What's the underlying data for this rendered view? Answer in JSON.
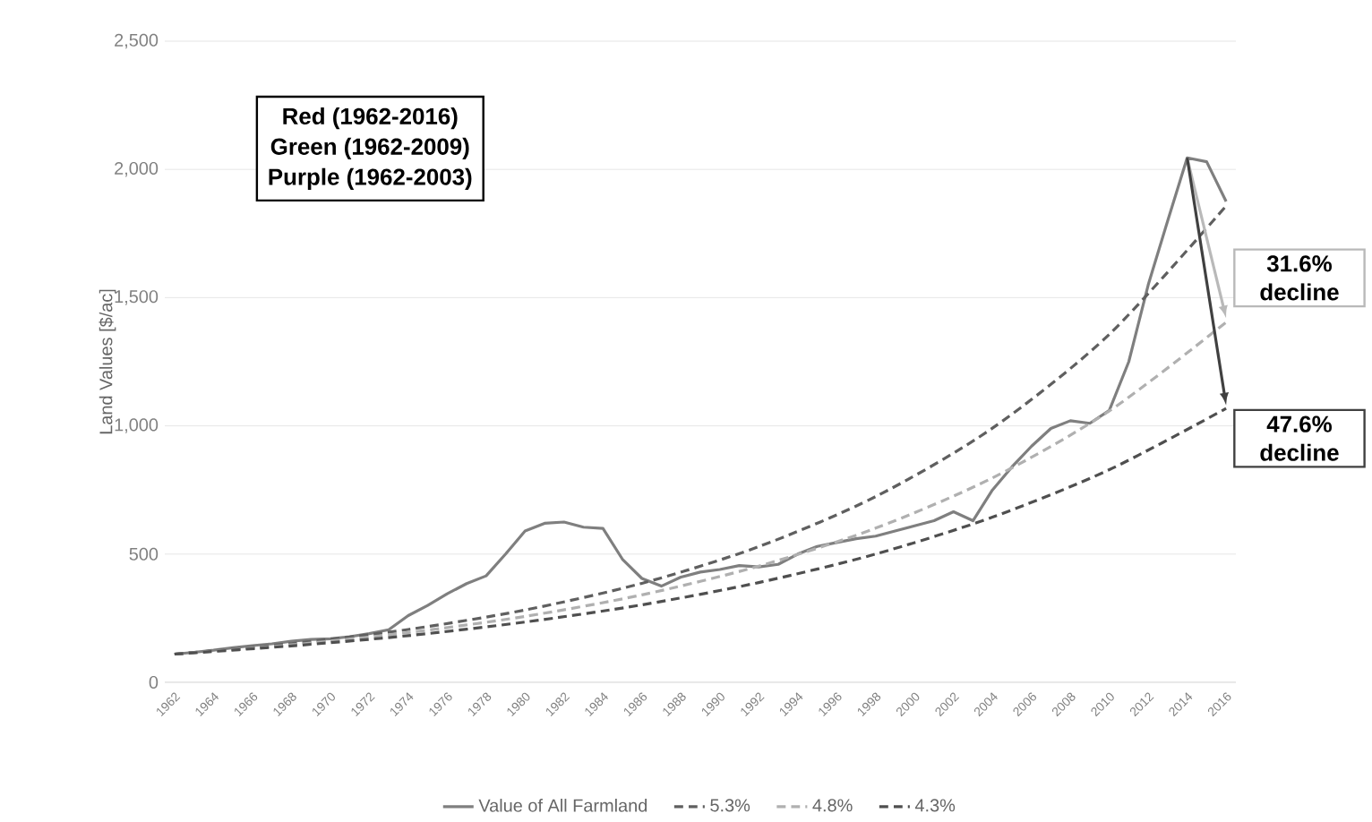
{
  "chart_data": {
    "type": "line",
    "ylabel": "Land Values [$/ac]",
    "xlim": [
      1961.5,
      2016.5
    ],
    "xticks": [
      {
        "value": 1962,
        "label": "1962"
      },
      {
        "value": 1964,
        "label": "1964"
      },
      {
        "value": 1966,
        "label": "1966"
      },
      {
        "value": 1968,
        "label": "1968"
      },
      {
        "value": 1970,
        "label": "1970"
      },
      {
        "value": 1972,
        "label": "1972"
      },
      {
        "value": 1974,
        "label": "1974"
      },
      {
        "value": 1976,
        "label": "1976"
      },
      {
        "value": 1978,
        "label": "1978"
      },
      {
        "value": 1980,
        "label": "1980"
      },
      {
        "value": 1982,
        "label": "1982"
      },
      {
        "value": 1984,
        "label": "1984"
      },
      {
        "value": 1986,
        "label": "1986"
      },
      {
        "value": 1988,
        "label": "1988"
      },
      {
        "value": 1990,
        "label": "1990"
      },
      {
        "value": 1992,
        "label": "1992"
      },
      {
        "value": 1994,
        "label": "1994"
      },
      {
        "value": 1996,
        "label": "1996"
      },
      {
        "value": 1998,
        "label": "1998"
      },
      {
        "value": 2000,
        "label": "2000"
      },
      {
        "value": 2002,
        "label": "2002"
      },
      {
        "value": 2004,
        "label": "2004"
      },
      {
        "value": 2006,
        "label": "2006"
      },
      {
        "value": 2008,
        "label": "2008"
      },
      {
        "value": 2010,
        "label": "2010"
      },
      {
        "value": 2012,
        "label": "2012"
      },
      {
        "value": 2014,
        "label": "2014"
      },
      {
        "value": 2016,
        "label": "2016"
      }
    ],
    "ylim": [
      0,
      2500
    ],
    "yticks": [
      0,
      500,
      {
        "value": 1000,
        "label": "1,000"
      },
      {
        "value": 1500,
        "label": "1,500"
      },
      {
        "value": 2000,
        "label": "2,000"
      },
      {
        "value": 2500,
        "label": "2,500"
      }
    ],
    "grid": "y",
    "legend": "bottom",
    "marker": "none",
    "series": [
      {
        "name": "Value of All Farmland",
        "color": "#7f7f7f",
        "line_style": "solid",
        "x": [
          1962,
          1963,
          1964,
          1965,
          1966,
          1967,
          1968,
          1969,
          1970,
          1971,
          1972,
          1973,
          1974,
          1975,
          1976,
          1977,
          1978,
          1979,
          1980,
          1981,
          1982,
          1983,
          1984,
          1985,
          1986,
          1987,
          1988,
          1989,
          1990,
          1991,
          1992,
          1993,
          1994,
          1995,
          1996,
          1997,
          1998,
          1999,
          2000,
          2001,
          2002,
          2003,
          2004,
          2005,
          2006,
          2007,
          2008,
          2009,
          2010,
          2011,
          2012,
          2013,
          2014,
          2015,
          2016
        ],
        "values": [
          110,
          117,
          125,
          135,
          143,
          150,
          160,
          167,
          170,
          178,
          190,
          205,
          260,
          300,
          345,
          385,
          415,
          500,
          590,
          620,
          625,
          605,
          600,
          480,
          405,
          375,
          410,
          430,
          440,
          455,
          450,
          460,
          500,
          530,
          545,
          560,
          570,
          590,
          610,
          630,
          665,
          630,
          750,
          840,
          920,
          990,
          1020,
          1010,
          1060,
          1250,
          1550,
          1800,
          2045,
          2030,
          1875
        ]
      },
      {
        "name": "5.3%",
        "color": "#5f5f5f",
        "line_style": "dashed",
        "x": [
          1962,
          1968,
          1974,
          1980,
          1986,
          1992,
          1998,
          2004,
          2010,
          2016
        ],
        "values": [
          110,
          151,
          206,
          282,
          386,
          529,
          724,
          991,
          1357,
          1858
        ]
      },
      {
        "name": "4.8%",
        "color": "#b0b0b0",
        "line_style": "dashed",
        "x": [
          1962,
          1968,
          1974,
          1980,
          1986,
          1992,
          1998,
          2004,
          2010,
          2016
        ],
        "values": [
          110,
          146,
          194,
          257,
          341,
          453,
          601,
          797,
          1058,
          1404
        ]
      },
      {
        "name": "4.3%",
        "color": "#4f4f4f",
        "line_style": "dashed",
        "x": [
          1962,
          1968,
          1974,
          1980,
          1986,
          1992,
          1998,
          2004,
          2010,
          2016
        ],
        "values": [
          110,
          142,
          182,
          235,
          302,
          389,
          500,
          644,
          829,
          1068
        ]
      }
    ],
    "annotations": [
      "Red (1962-2016)",
      "Green (1962-2009)",
      "Purple (1962-2003)",
      {
        "text": "31.6% decline",
        "x": 2016,
        "y": 1420
      },
      {
        "text": "47.6% decline",
        "x": 2016,
        "y": 1080
      }
    ]
  }
}
